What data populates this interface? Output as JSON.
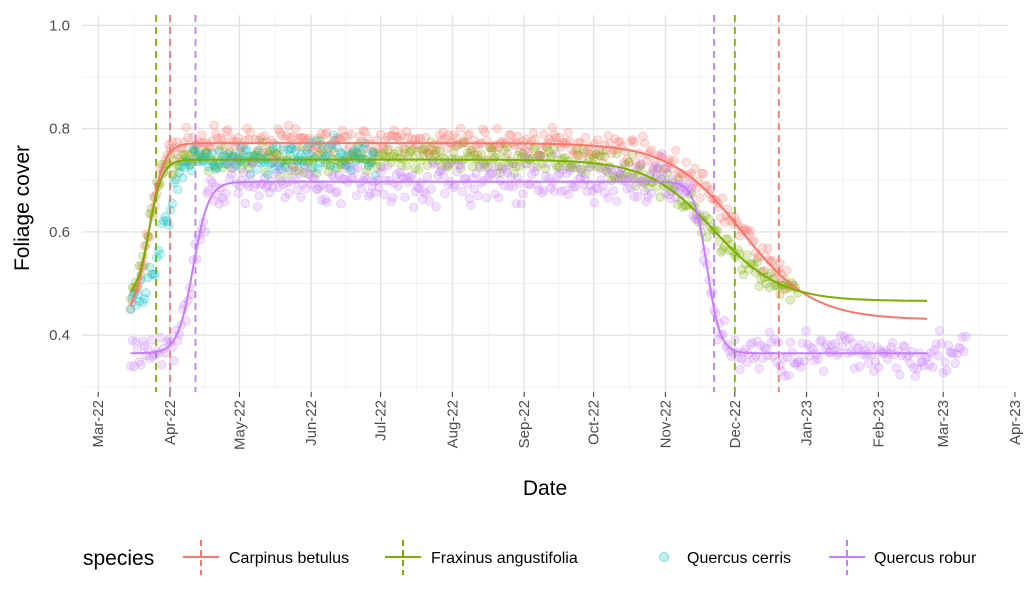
{
  "chart_data": {
    "type": "scatter",
    "xlabel": "Date",
    "ylabel": "Foliage cover",
    "x_ticks": [
      "Mar-22",
      "Apr-22",
      "May-22",
      "Jun-22",
      "Jul-22",
      "Aug-22",
      "Sep-22",
      "Oct-22",
      "Nov-22",
      "Dec-22",
      "Jan-23",
      "Feb-23",
      "Mar-23",
      "Apr-23"
    ],
    "x_range_days": [
      -7,
      393
    ],
    "x_origin": "2022-03-01",
    "y_ticks": [
      "0.4",
      "0.6",
      "0.8",
      "1.0"
    ],
    "y_tick_values": [
      0.4,
      0.6,
      0.8,
      1.0
    ],
    "ylim": [
      0.29,
      1.02
    ],
    "legend": {
      "title": "species",
      "position": "bottom",
      "entries": [
        {
          "label": "Carpinus betulus",
          "kind": "line"
        },
        {
          "label": "Fraxinus angustifolia",
          "kind": "line"
        },
        {
          "label": "Quercus cerris",
          "kind": "point"
        },
        {
          "label": "Quercus robur",
          "kind": "line"
        }
      ]
    },
    "series": [
      {
        "name": "Carpinus betulus",
        "color": "#F8766D",
        "fit": {
          "base": 0.435,
          "peak": 0.772,
          "green_up_day": 22,
          "green_up_rate": 0.32,
          "senescence_day": 278,
          "senescence_rate": 0.065,
          "late_base": 0.43
        },
        "vlines_day": [
          31,
          294
        ],
        "points_days": [
          14,
          300
        ],
        "point_noise": 0.02
      },
      {
        "name": "Fraxinus angustifolia",
        "color": "#7CAE00",
        "fit": {
          "base": 0.468,
          "peak": 0.74,
          "green_up_day": 22,
          "green_up_rate": 0.35,
          "senescence_day": 266,
          "senescence_rate": 0.07,
          "late_base": 0.466
        },
        "vlines_day": [
          25,
          275
        ],
        "points_days": [
          14,
          302
        ],
        "point_noise": 0.02
      },
      {
        "name": "Quercus cerris",
        "color": "#00BFC4",
        "fit": {
          "base": 0.44,
          "peak": 0.745,
          "green_up_day": 28,
          "green_up_rate": 0.24
        },
        "vlines_day": [],
        "points_days": [
          14,
          120
        ],
        "point_noise": 0.022
      },
      {
        "name": "Quercus robur",
        "color": "#C77CFF",
        "fit": {
          "base": 0.365,
          "peak": 0.697,
          "green_up_day": 41,
          "green_up_rate": 0.3,
          "senescence_day": 263,
          "senescence_rate": 0.35,
          "late_base": 0.365
        },
        "vlines_day": [
          42,
          266
        ],
        "points_days": [
          14,
          375
        ],
        "point_noise": 0.03
      }
    ]
  }
}
